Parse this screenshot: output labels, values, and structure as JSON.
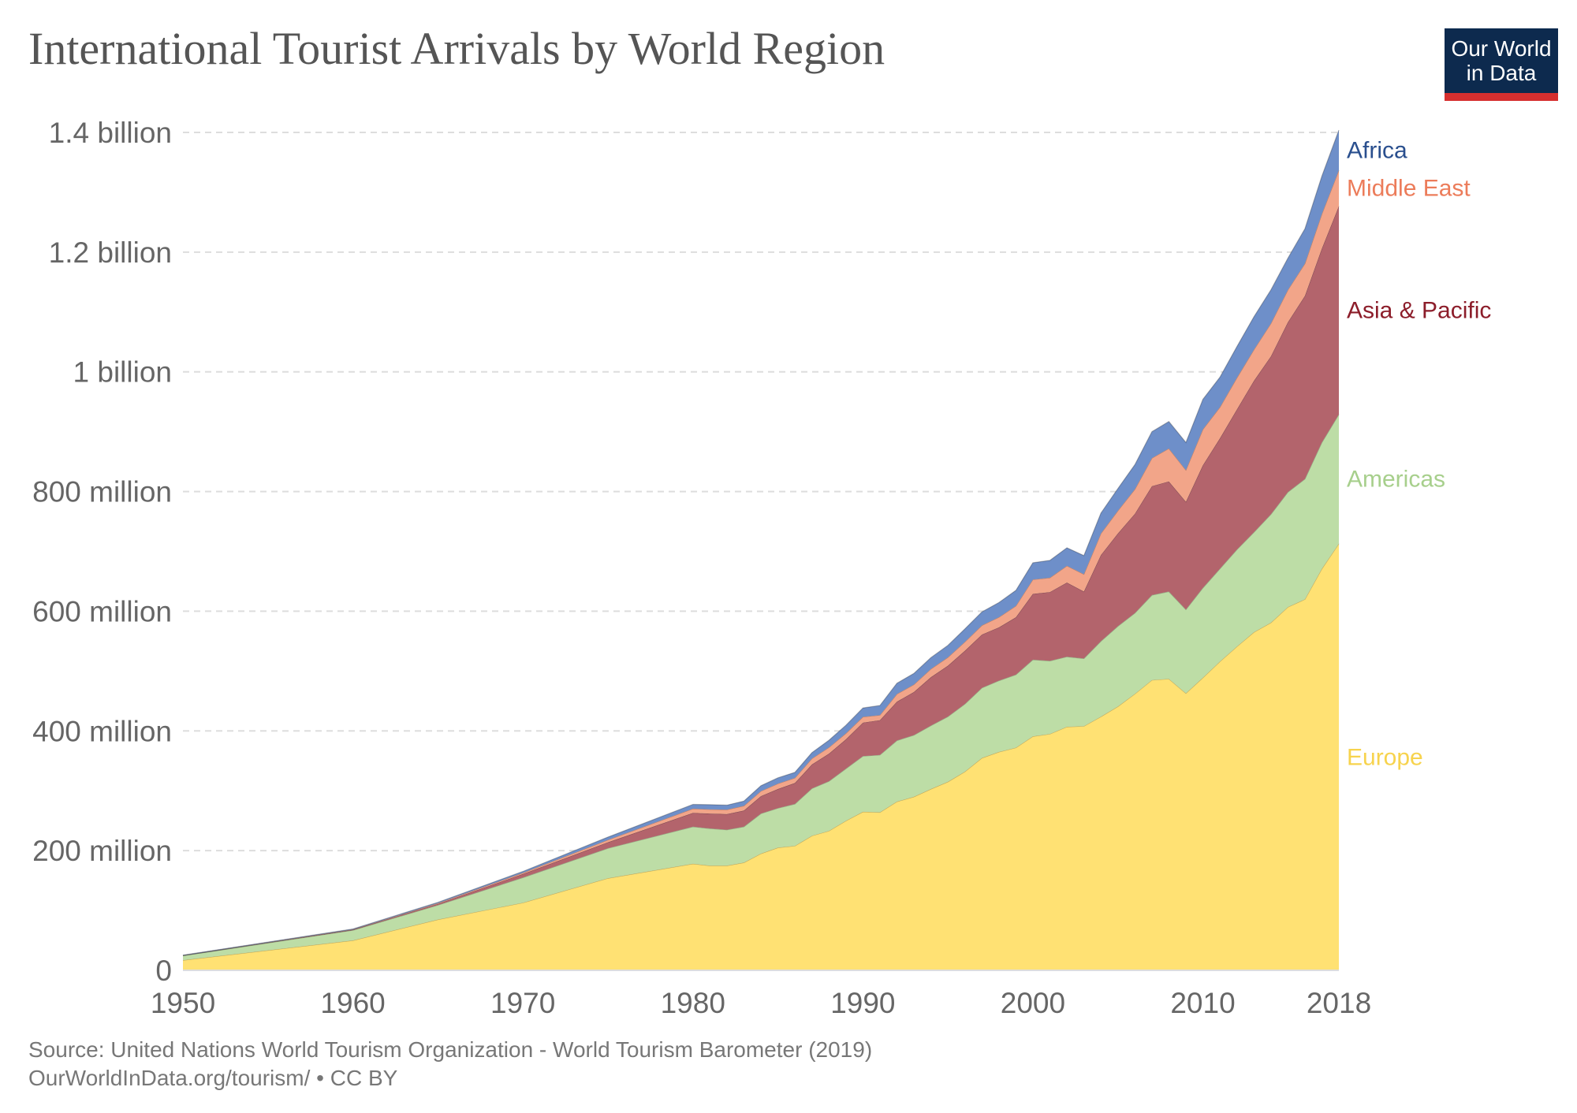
{
  "header": {
    "title": "International Tourist Arrivals by World Region",
    "logo_line1": "Our World",
    "logo_line2": "in Data"
  },
  "footer": {
    "source": "Source: United Nations World Tourism Organization - World Tourism Barometer (2019)",
    "license": "OurWorldInData.org/tourism/ • CC BY"
  },
  "chart_data": {
    "type": "area",
    "stacked": true,
    "title": "International Tourist Arrivals by World Region",
    "xlabel": "",
    "ylabel": "",
    "xlim": [
      1950,
      2018
    ],
    "ylim": [
      0,
      1400000000
    ],
    "grid": true,
    "legend_placement": "right, inline labels at series ends",
    "x_tick_labels": [
      {
        "value": 1950,
        "label": "1950"
      },
      {
        "value": 1960,
        "label": "1960"
      },
      {
        "value": 1970,
        "label": "1970"
      },
      {
        "value": 1980,
        "label": "1980"
      },
      {
        "value": 1990,
        "label": "1990"
      },
      {
        "value": 2000,
        "label": "2000"
      },
      {
        "value": 2010,
        "label": "2010"
      },
      {
        "value": 2018,
        "label": "2018"
      }
    ],
    "y_tick_labels": [
      {
        "value": 0,
        "label": "0"
      },
      {
        "value": 200000000,
        "label": "200 million"
      },
      {
        "value": 400000000,
        "label": "400 million"
      },
      {
        "value": 600000000,
        "label": "600 million"
      },
      {
        "value": 800000000,
        "label": "800 million"
      },
      {
        "value": 1000000000,
        "label": "1 billion"
      },
      {
        "value": 1200000000,
        "label": "1.2 billion"
      },
      {
        "value": 1400000000,
        "label": "1.4 billion"
      }
    ],
    "x": [
      1950,
      1960,
      1965,
      1970,
      1975,
      1980,
      1981,
      1982,
      1983,
      1984,
      1985,
      1986,
      1987,
      1988,
      1989,
      1990,
      1991,
      1992,
      1993,
      1994,
      1995,
      1996,
      1997,
      1998,
      1999,
      2000,
      2001,
      2002,
      2003,
      2004,
      2005,
      2006,
      2007,
      2008,
      2009,
      2010,
      2011,
      2012,
      2013,
      2014,
      2015,
      2016,
      2017,
      2018
    ],
    "series": [
      {
        "name": "Europe",
        "color": "#ffe173",
        "label_color": "#f7d34d",
        "values": [
          17000000,
          50000000,
          85000000,
          113000000,
          154000000,
          178000000,
          175000000,
          175000000,
          180000000,
          195000000,
          205000000,
          208000000,
          225000000,
          233000000,
          250000000,
          265000000,
          264000000,
          282000000,
          290000000,
          303000000,
          315000000,
          332000000,
          355000000,
          365000000,
          372000000,
          391000000,
          395000000,
          407000000,
          408000000,
          424000000,
          441000000,
          462000000,
          485000000,
          487000000,
          463000000,
          489000000,
          516000000,
          541000000,
          565000000,
          581000000,
          607000000,
          620000000,
          671000000,
          713000000
        ]
      },
      {
        "name": "Americas",
        "color": "#bddda6",
        "label_color": "#a7cf8c",
        "values": [
          7500000,
          17000000,
          24000000,
          42000000,
          50000000,
          62000000,
          62000000,
          60000000,
          60000000,
          67000000,
          66000000,
          70000000,
          79000000,
          83000000,
          87000000,
          93000000,
          96000000,
          102000000,
          103000000,
          106000000,
          109000000,
          113000000,
          117000000,
          119000000,
          122000000,
          128000000,
          122000000,
          117000000,
          113000000,
          126000000,
          134000000,
          135000000,
          142000000,
          146000000,
          140000000,
          150000000,
          155000000,
          162000000,
          167000000,
          181000000,
          192000000,
          201000000,
          211000000,
          216000000
        ]
      },
      {
        "name": "Asia & Pacific",
        "color": "#b3646c",
        "label_color": "#8c1d2a",
        "values": [
          200000,
          800000,
          2000000,
          6000000,
          10000000,
          23000000,
          25000000,
          26000000,
          27000000,
          29000000,
          32000000,
          35000000,
          40000000,
          46000000,
          49000000,
          56000000,
          58000000,
          65000000,
          72000000,
          81000000,
          85000000,
          89000000,
          89000000,
          89000000,
          96000000,
          110000000,
          115000000,
          124000000,
          112000000,
          144000000,
          155000000,
          166000000,
          182000000,
          184000000,
          180000000,
          205000000,
          218000000,
          234000000,
          253000000,
          264000000,
          284000000,
          306000000,
          324000000,
          348000000
        ]
      },
      {
        "name": "Middle East",
        "color": "#f2a589",
        "label_color": "#ec7c5a",
        "values": [
          200000,
          600000,
          1200000,
          1900000,
          4000000,
          7100000,
          7000000,
          7500000,
          7800000,
          8500000,
          9000000,
          8500000,
          10000000,
          10500000,
          10000000,
          9500000,
          8500000,
          12800000,
          12600000,
          13600000,
          14000000,
          15000000,
          15500000,
          17000000,
          19000000,
          24000000,
          24000000,
          28000000,
          29000000,
          36000000,
          38000000,
          41000000,
          47000000,
          55000000,
          53000000,
          60000000,
          52000000,
          53000000,
          52000000,
          55000000,
          54000000,
          54000000,
          58000000,
          60000000
        ]
      },
      {
        "name": "Africa",
        "color": "#6e8fc9",
        "label_color": "#2a4f8e",
        "values": [
          500000,
          750000,
          1400000,
          2400000,
          4700000,
          7200000,
          7800000,
          7500000,
          8000000,
          8900000,
          9700000,
          9300000,
          9800000,
          12000000,
          13500000,
          15000000,
          16000000,
          18000000,
          18500000,
          19000000,
          20000000,
          21500000,
          22500000,
          24500000,
          26000000,
          28000000,
          29000000,
          30000000,
          31000000,
          34000000,
          37000000,
          41000000,
          44000000,
          45000000,
          46000000,
          50000000,
          50000000,
          52000000,
          55000000,
          56000000,
          53000000,
          58000000,
          63000000,
          67000000
        ]
      }
    ]
  }
}
